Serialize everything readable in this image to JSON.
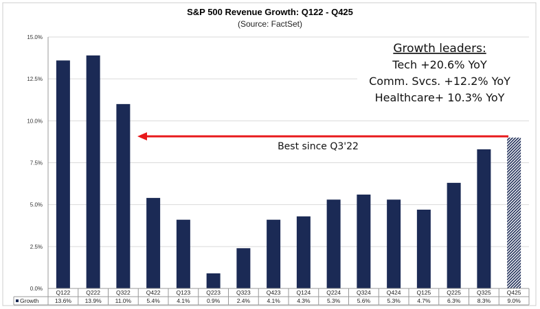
{
  "chart_data": {
    "type": "bar",
    "title": "S&P 500 Revenue Growth: Q122 - Q425",
    "subtitle": "(Source: FactSet)",
    "categories": [
      "Q122",
      "Q222",
      "Q322",
      "Q422",
      "Q123",
      "Q223",
      "Q323",
      "Q423",
      "Q124",
      "Q224",
      "Q324",
      "Q424",
      "Q125",
      "Q225",
      "Q325",
      "Q425"
    ],
    "series": [
      {
        "name": "Growth",
        "values": [
          13.6,
          13.9,
          11.0,
          5.4,
          4.1,
          0.9,
          2.4,
          4.1,
          4.3,
          5.3,
          5.6,
          5.3,
          4.7,
          6.3,
          8.3,
          9.0
        ]
      }
    ],
    "value_labels": [
      "13.6%",
      "13.9%",
      "11.0%",
      "5.4%",
      "4.1%",
      "0.9%",
      "2.4%",
      "4.1%",
      "4.3%",
      "5.3%",
      "5.6%",
      "5.3%",
      "4.7%",
      "6.3%",
      "8.3%",
      "9.0%"
    ],
    "estimate_index": 15,
    "ylim": [
      0,
      15
    ],
    "yticks": [
      0,
      2.5,
      5,
      7.5,
      10,
      12.5,
      15
    ],
    "ytick_labels": [
      "0.0%",
      "2.5%",
      "5.0%",
      "7.5%",
      "10.0%",
      "12.5%",
      "15.0%"
    ],
    "grid": true,
    "legend": "data-table-bottom",
    "colors": {
      "bar": "#1b2a55",
      "estimate": "#8a93b0",
      "arrow": "#e8191b"
    },
    "annotations": {
      "arrow_label": "Best since Q3'22",
      "leaders_title": "Growth leaders:",
      "leaders": [
        "Tech +20.6% YoY",
        "Comm. Svcs. +12.2% YoY",
        "Healthcare+ 10.3% YoY"
      ]
    }
  }
}
